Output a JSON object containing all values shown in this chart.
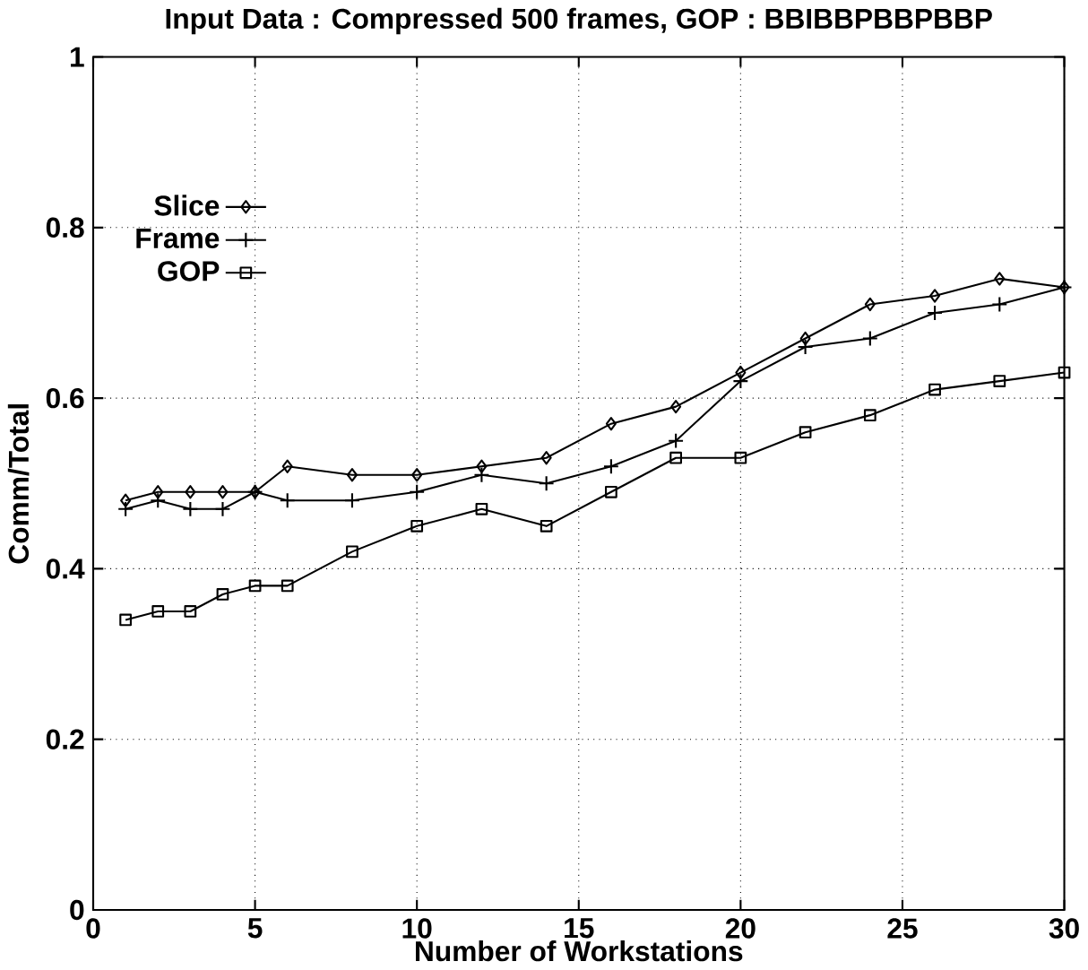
{
  "chart_data": {
    "type": "line",
    "title": "Input Data : Compressed 500 frames, GOP : BBIBBPBBPBBP",
    "xlabel": "Number of Workstations",
    "ylabel": "Comm/Total",
    "x": [
      1,
      2,
      3,
      4,
      5,
      6,
      8,
      10,
      12,
      14,
      16,
      18,
      20,
      22,
      24,
      26,
      28,
      30
    ],
    "series": [
      {
        "name": "Slice",
        "color": "#000000",
        "marker": "diamond",
        "values": [
          0.48,
          0.49,
          0.49,
          0.49,
          0.49,
          0.52,
          0.51,
          0.51,
          0.52,
          0.53,
          0.57,
          0.59,
          0.63,
          0.67,
          0.71,
          0.72,
          0.74,
          0.73
        ]
      },
      {
        "name": "Frame",
        "color": "#000000",
        "marker": "cross",
        "values": [
          0.47,
          0.48,
          0.47,
          0.47,
          0.49,
          0.48,
          0.48,
          0.49,
          0.51,
          0.5,
          0.52,
          0.55,
          0.62,
          0.66,
          0.67,
          0.7,
          0.71,
          0.73
        ]
      },
      {
        "name": "GOP",
        "color": "#000000",
        "marker": "square",
        "values": [
          0.34,
          0.35,
          0.35,
          0.37,
          0.38,
          0.38,
          0.42,
          0.45,
          0.47,
          0.45,
          0.49,
          0.53,
          0.53,
          0.56,
          0.58,
          0.61,
          0.62,
          0.63
        ]
      }
    ],
    "xlim": [
      0,
      30
    ],
    "ylim": [
      0,
      1
    ],
    "xticks": [
      0,
      5,
      10,
      15,
      20,
      25,
      30
    ],
    "yticks": [
      0,
      0.2,
      0.4,
      0.6,
      0.8,
      1
    ],
    "grid": true,
    "legend": "top left",
    "line_style": "solid"
  }
}
